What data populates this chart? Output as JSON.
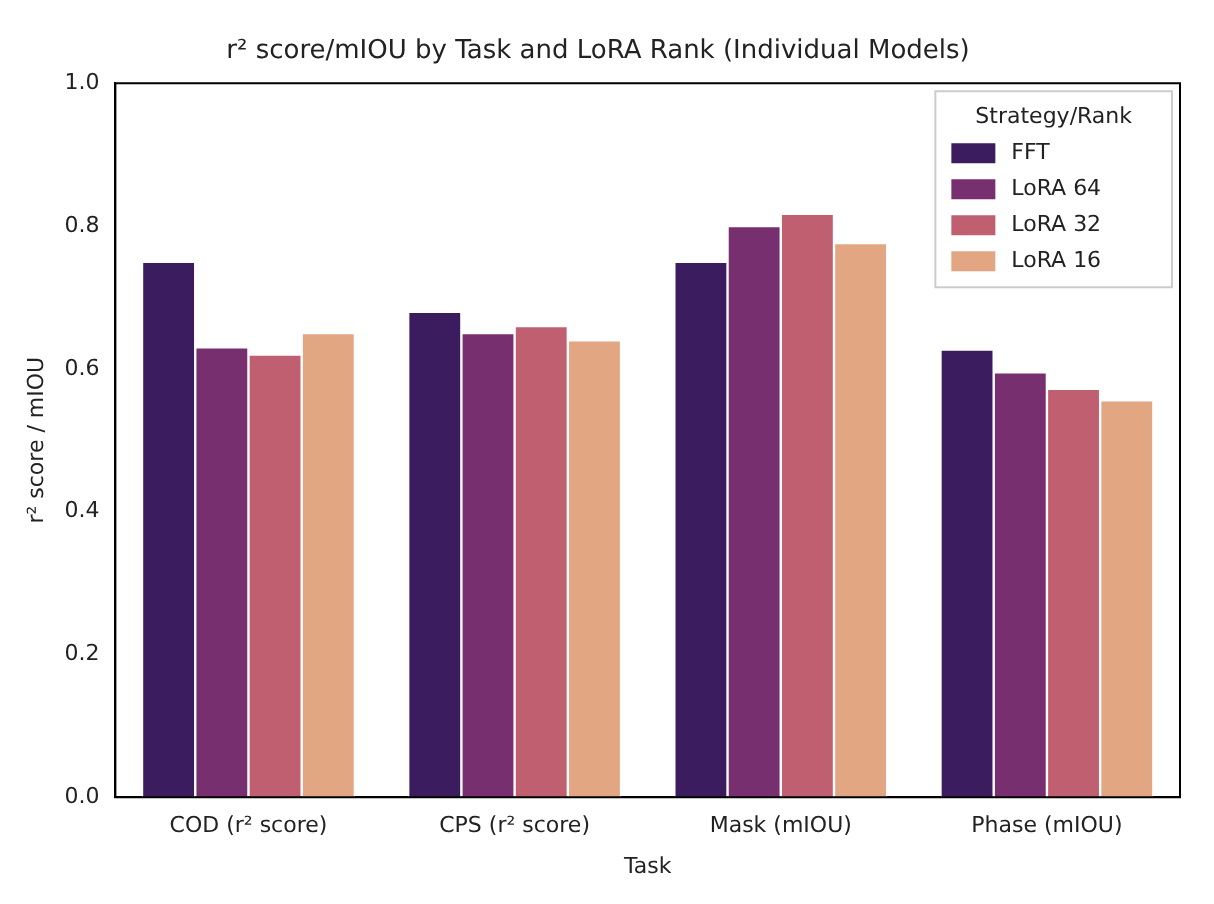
{
  "chart_data": {
    "type": "bar",
    "title": "r² score/mIOU by Task and LoRA Rank (Individual Models)",
    "xlabel": "Task",
    "ylabel": "r² score / mIOU",
    "legend_title": "Strategy/Rank",
    "categories": [
      "COD (r² score)",
      "CPS (r² score)",
      "Mask (mIOU)",
      "Phase (mIOU)"
    ],
    "series": [
      {
        "name": "FFT",
        "color": "#3b1c5e",
        "values": [
          0.75,
          0.68,
          0.75,
          0.627
        ]
      },
      {
        "name": "LoRA 64",
        "color": "#782f6f",
        "values": [
          0.63,
          0.65,
          0.8,
          0.595
        ]
      },
      {
        "name": "LoRA 32",
        "color": "#bf5f70",
        "values": [
          0.62,
          0.66,
          0.817,
          0.572
        ]
      },
      {
        "name": "LoRA 16",
        "color": "#e3a683",
        "values": [
          0.65,
          0.64,
          0.776,
          0.556
        ]
      }
    ],
    "ylim": [
      0,
      1
    ],
    "yticks": [
      {
        "value": 0,
        "label": "0.0"
      },
      0.2,
      0.4,
      0.6,
      0.8,
      {
        "value": 1,
        "label": "1.0"
      }
    ],
    "grid": false,
    "legend": "top right"
  }
}
